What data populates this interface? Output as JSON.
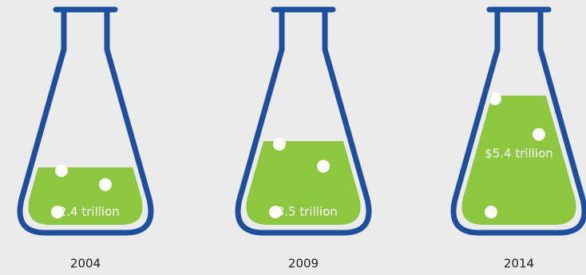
{
  "chart_data": {
    "type": "flask",
    "categories": [
      "2004",
      "2009",
      "2014"
    ],
    "values": [
      2.4,
      3.5,
      5.4
    ],
    "value_labels": [
      "$2.4 trillion",
      "$3.5 trillion",
      "$5.4 trillion"
    ],
    "color": "#8dc63f",
    "outline_color": "#1d4f9c"
  }
}
